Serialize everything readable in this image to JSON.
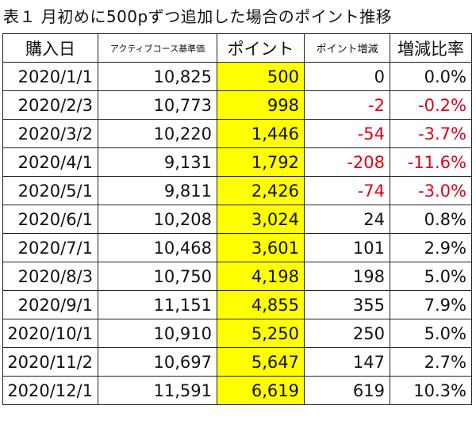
{
  "title": "表１ 月初めに500pずつ追加した場合のポイント推移",
  "headers": [
    "購入日",
    "アクティブコース基準価",
    "ポイント",
    "ポイント増減",
    "増減比率"
  ],
  "rows": [
    {
      "date": "2020/1/1",
      "nav": "10,825",
      "points": "500",
      "change": "0",
      "ratio": "0.0%"
    },
    {
      "date": "2020/2/3",
      "nav": "10,773",
      "points": "998",
      "change": "-2",
      "ratio": "-0.2%"
    },
    {
      "date": "2020/3/2",
      "nav": "10,220",
      "points": "1,446",
      "change": "-54",
      "ratio": "-3.7%"
    },
    {
      "date": "2020/4/1",
      "nav": "9,131",
      "points": "1,792",
      "change": "-208",
      "ratio": "-11.6%"
    },
    {
      "date": "2020/5/1",
      "nav": "9,811",
      "points": "2,426",
      "change": "-74",
      "ratio": "-3.0%"
    },
    {
      "date": "2020/6/1",
      "nav": "10,208",
      "points": "3,024",
      "change": "24",
      "ratio": "0.8%"
    },
    {
      "date": "2020/7/1",
      "nav": "10,468",
      "points": "3,601",
      "change": "101",
      "ratio": "2.9%"
    },
    {
      "date": "2020/8/3",
      "nav": "10,750",
      "points": "4,198",
      "change": "198",
      "ratio": "5.0%"
    },
    {
      "date": "2020/9/1",
      "nav": "11,151",
      "points": "4,855",
      "change": "355",
      "ratio": "7.9%"
    },
    {
      "date": "2020/10/1",
      "nav": "10,910",
      "points": "5,250",
      "change": "250",
      "ratio": "5.0%"
    },
    {
      "date": "2020/11/2",
      "nav": "10,697",
      "points": "5,647",
      "change": "147",
      "ratio": "2.7%"
    },
    {
      "date": "2020/12/1",
      "nav": "11,591",
      "points": "6,619",
      "change": "619",
      "ratio": "10.3%"
    }
  ],
  "colors": {
    "highlight": "#ffff00",
    "negative": "#e0001b"
  }
}
